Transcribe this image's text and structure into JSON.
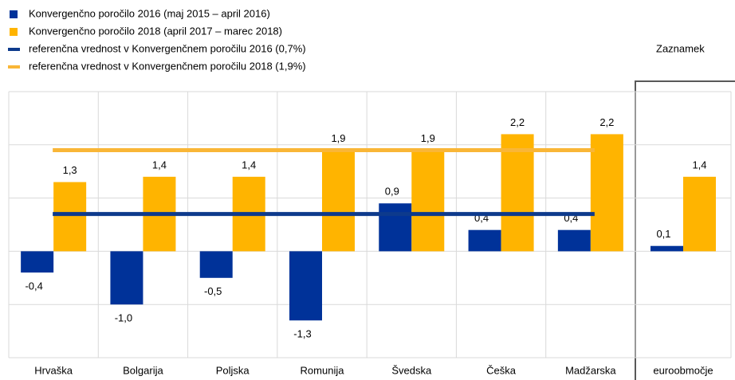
{
  "chart_data": {
    "type": "bar",
    "categories": [
      "Hrvaška",
      "Bolgarija",
      "Poljska",
      "Romunija",
      "Švedska",
      "Češka",
      "Madžarska",
      "euroobmočje"
    ],
    "series": [
      {
        "name": "Konvergenčno poročilo 2016 (maj 2015 – april 2016)",
        "color": "#003299",
        "values": [
          -0.4,
          -1.0,
          -0.5,
          -1.3,
          0.9,
          0.4,
          0.4,
          0.1
        ],
        "value_labels": [
          "-0,4",
          "-1,0",
          "-0,5",
          "-1,3",
          "0,9",
          "0,4",
          "0,4",
          "0,1"
        ]
      },
      {
        "name": "Konvergenčno poročilo 2018 (april 2017 – marec 2018)",
        "color": "#ffb400",
        "values": [
          1.3,
          1.4,
          1.4,
          1.9,
          1.9,
          2.2,
          2.2,
          1.4
        ],
        "value_labels": [
          "1,3",
          "1,4",
          "1,4",
          "1,9",
          "1,9",
          "2,2",
          "2,2",
          "1,4"
        ]
      }
    ],
    "reference_lines": [
      {
        "name": "referenčna vrednost v Konvergenčnem poročilu 2016 (0,7%)",
        "color": "#0d3a8c",
        "value": 0.7
      },
      {
        "name": "referenčna vrednost v Konvergenčnem poročilu 2018 (1,9%)",
        "color": "#f9b637",
        "value": 1.9
      }
    ],
    "annotation": "Zaznamek",
    "ylim": [
      -2,
      3
    ],
    "yticks": [
      -2,
      -1,
      0,
      1,
      2,
      3
    ],
    "grid": true
  }
}
